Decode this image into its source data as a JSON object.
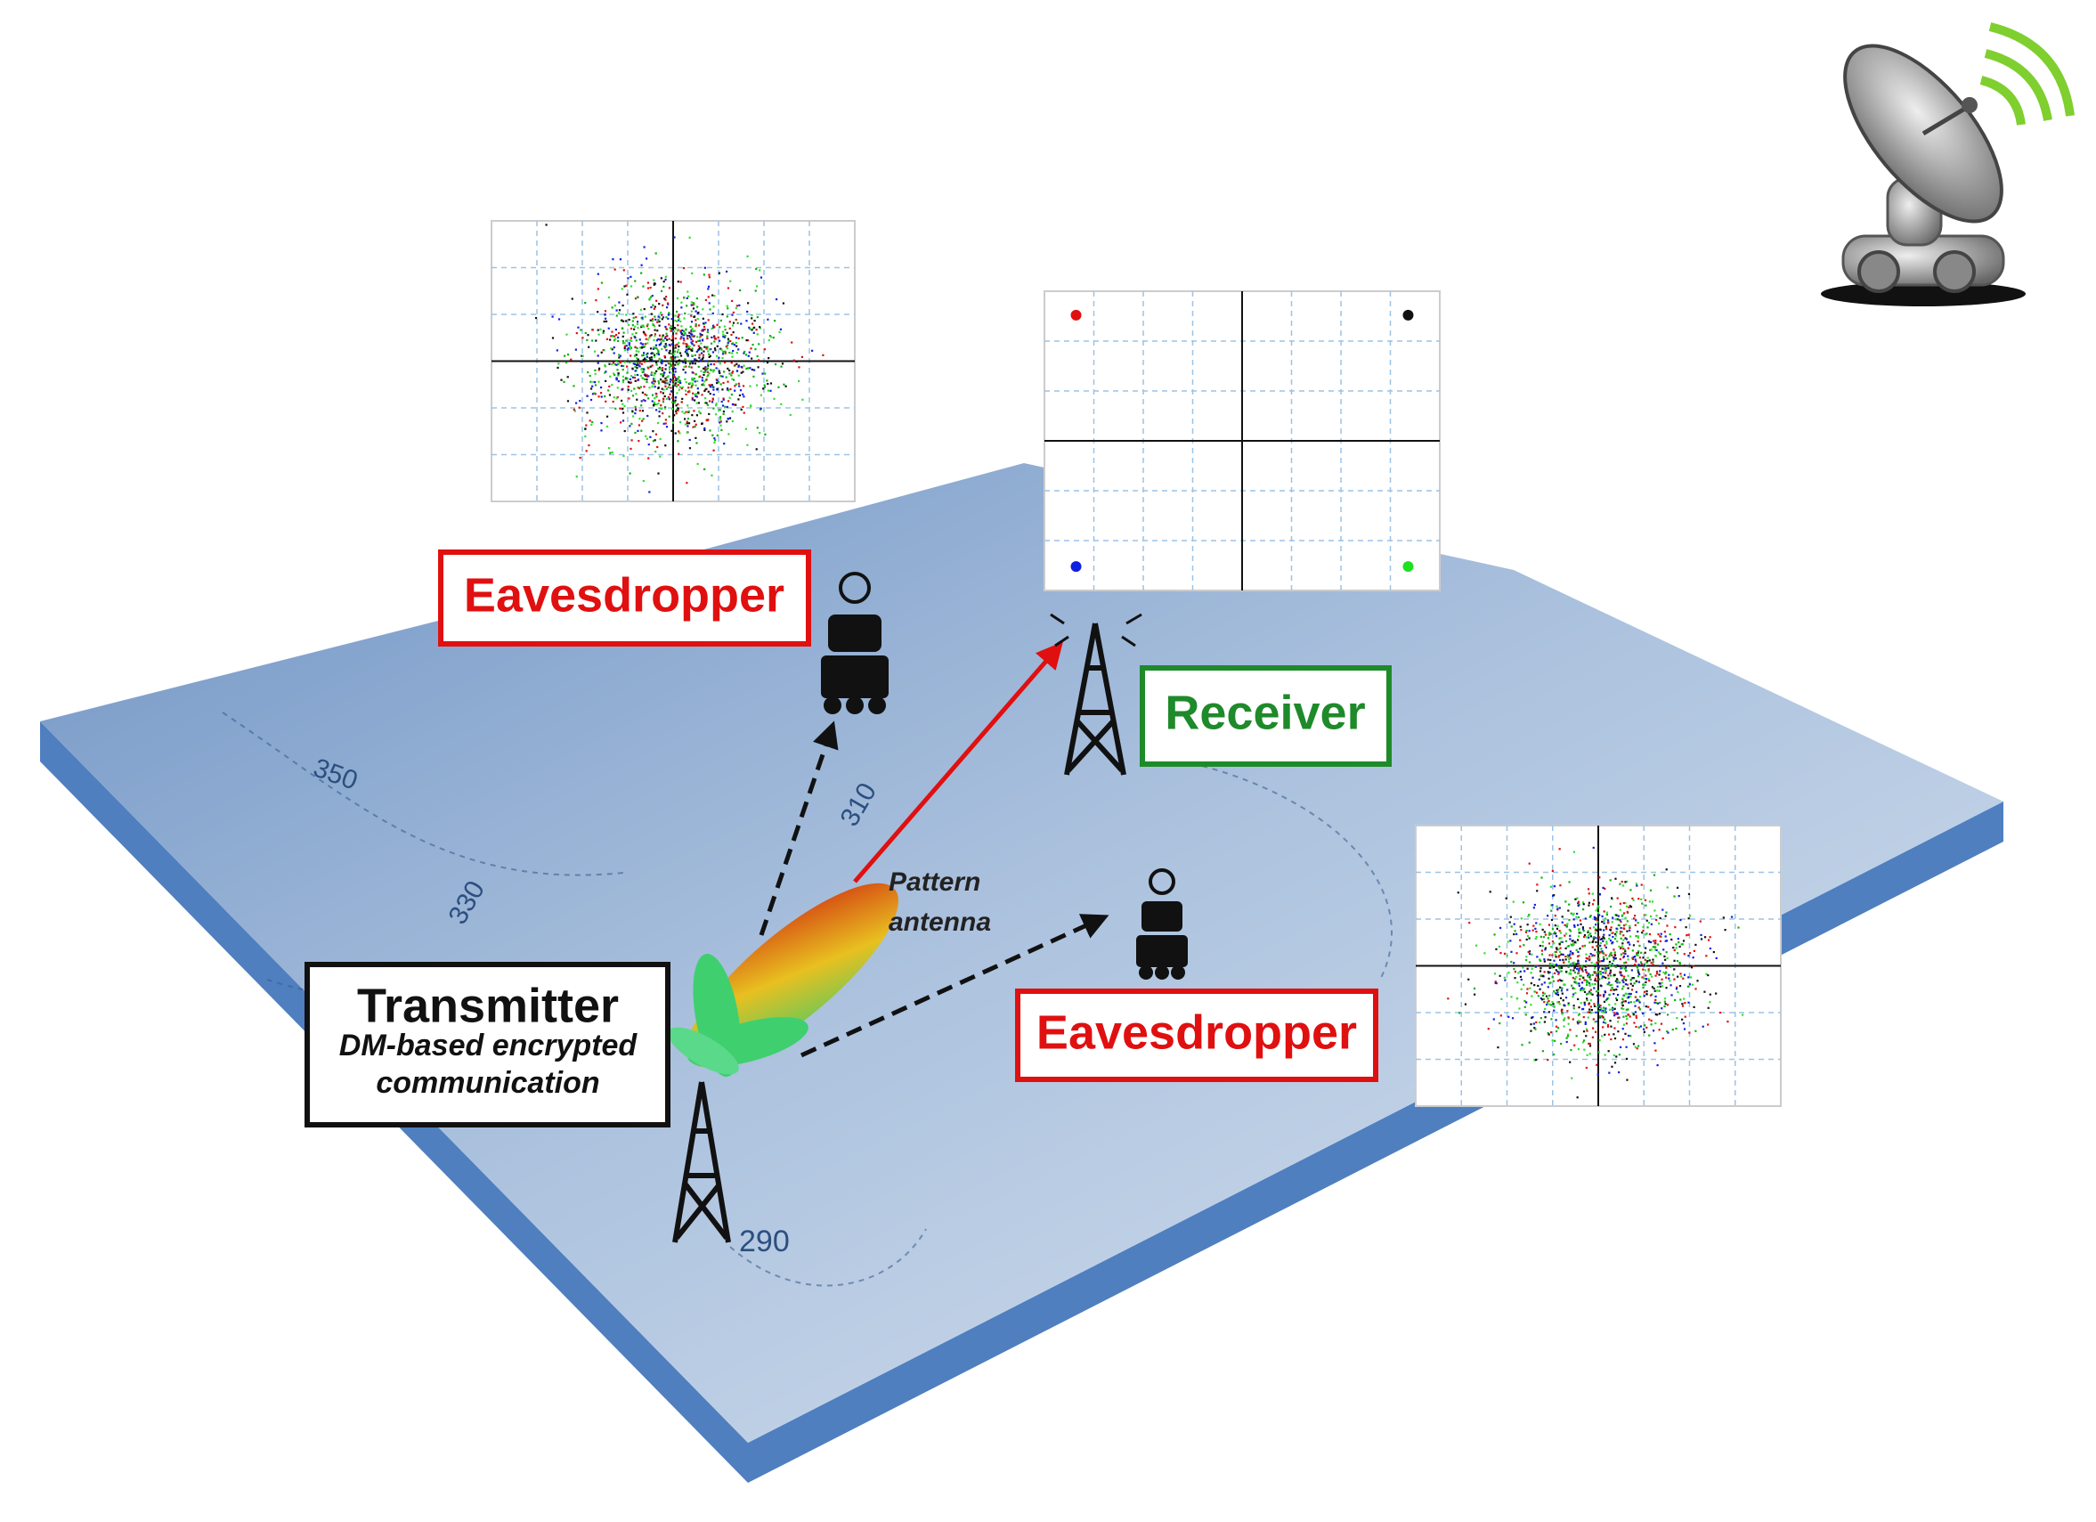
{
  "labels": {
    "eavesdropper_top": "Eavesdropper",
    "eavesdropper_bottom": "Eavesdropper",
    "receiver": "Receiver",
    "transmitter": {
      "title": "Transmitter",
      "subtitle_line1": "DM-based encrypted",
      "subtitle_line2": "communication"
    },
    "pattern_antenna": {
      "line1": "Pattern",
      "line2": "antenna"
    },
    "contours": [
      "350",
      "330",
      "310",
      "290"
    ]
  }
}
